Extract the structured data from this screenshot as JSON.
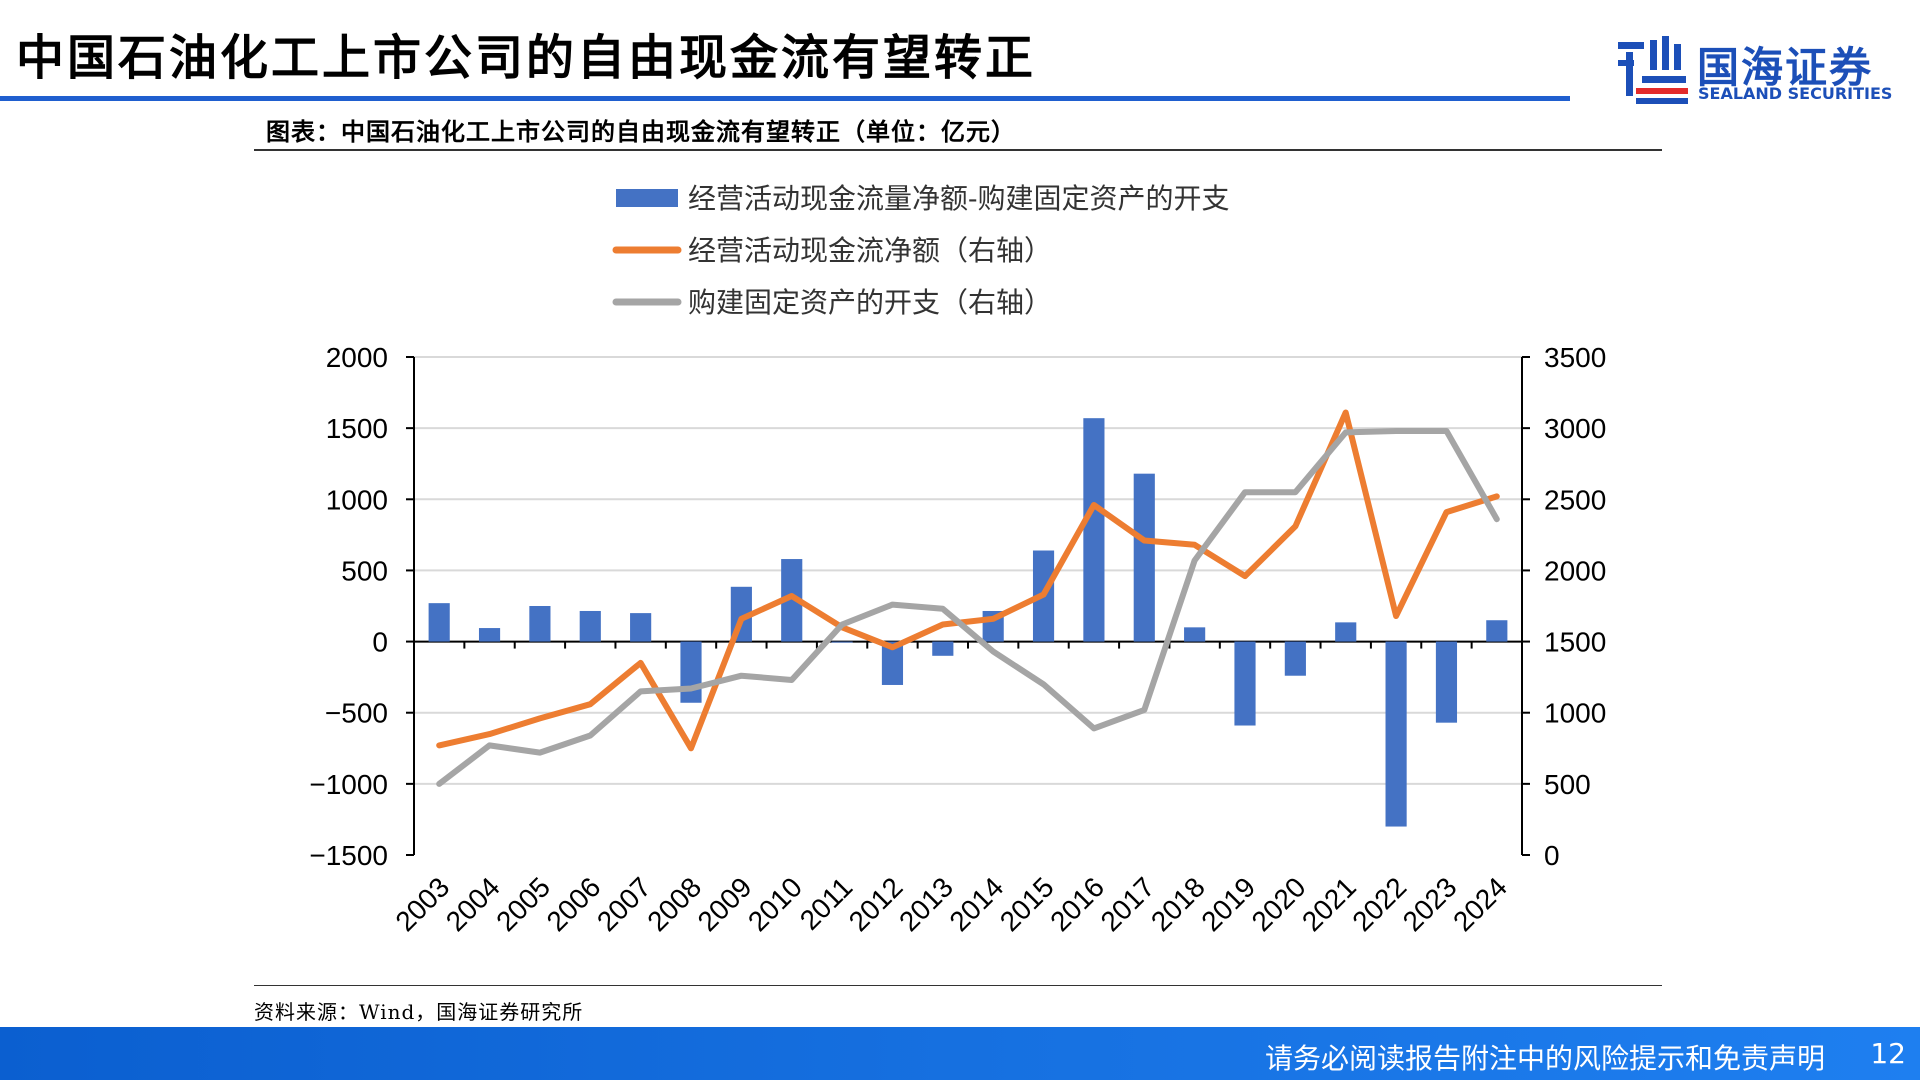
{
  "slide": {
    "title": "中国石油化工上市公司的自由现金流有望转正",
    "chart_caption": "图表：中国石油化工上市公司的自由现金流有望转正（单位：亿元）",
    "source": "资料来源：Wind，国海证券研究所",
    "footer_text": "请务必阅读报告附注中的风险提示和免责声明",
    "page_number": "12"
  },
  "logo": {
    "cn": "国海证券",
    "en": "SEALAND SECURITIES",
    "color": "#1c4fb8"
  },
  "chart_data": {
    "type": "bar",
    "categories": [
      "2003",
      "2004",
      "2005",
      "2006",
      "2007",
      "2008",
      "2009",
      "2010",
      "2011",
      "2012",
      "2013",
      "2014",
      "2015",
      "2016",
      "2017",
      "2018",
      "2019",
      "2020",
      "2021",
      "2022",
      "2023",
      "2024"
    ],
    "left_axis": {
      "min": -1500,
      "max": 2000,
      "step": 500,
      "ticks": [
        "2000",
        "1500",
        "1000",
        "500",
        "0",
        "−500",
        "−1000",
        "−1500"
      ]
    },
    "right_axis": {
      "min": 0,
      "max": 3500,
      "step": 500,
      "ticks": [
        "3500",
        "3000",
        "2500",
        "2000",
        "1500",
        "1000",
        "500",
        "0"
      ]
    },
    "grid": true,
    "legend_position": "top",
    "series": [
      {
        "name": "经营活动现金流量净额-购建固定资产的开支",
        "kind": "bar",
        "axis": "left",
        "color": "#4472c4",
        "values": [
          270,
          95,
          250,
          215,
          200,
          -430,
          385,
          580,
          -5,
          -305,
          -100,
          215,
          640,
          1570,
          1180,
          100,
          -590,
          -240,
          135,
          -1300,
          -570,
          150
        ]
      },
      {
        "name": "经营活动现金流净额（右轴）",
        "kind": "line",
        "axis": "right",
        "color": "#ed7d31",
        "values": [
          770,
          850,
          960,
          1060,
          1350,
          750,
          1660,
          1820,
          1600,
          1460,
          1620,
          1660,
          1830,
          2460,
          2210,
          2180,
          1960,
          2310,
          3110,
          1680,
          2410,
          2520
        ]
      },
      {
        "name": "购建固定资产的开支（右轴）",
        "kind": "line",
        "axis": "right",
        "color": "#a5a5a5",
        "values": [
          500,
          770,
          720,
          840,
          1150,
          1170,
          1260,
          1230,
          1620,
          1760,
          1730,
          1430,
          1200,
          890,
          1020,
          2070,
          2550,
          2550,
          2970,
          2980,
          2980,
          2360
        ]
      }
    ]
  }
}
